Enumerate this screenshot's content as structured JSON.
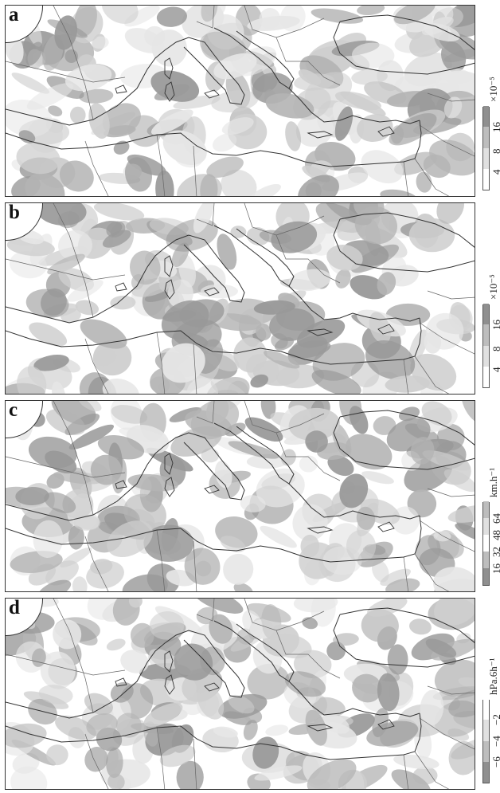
{
  "panels": [
    {
      "id": "a",
      "label": "a",
      "shading": "a",
      "colorbar": {
        "unit": "×10⁻⁵",
        "levels": [
          "4",
          "8",
          "16"
        ],
        "colors": [
          "#ffffff",
          "#e0e0e0",
          "#bdbdbd",
          "#8f8f8f"
        ]
      }
    },
    {
      "id": "b",
      "label": "b",
      "shading": "b",
      "colorbar": {
        "unit": "×10⁻⁵",
        "levels": [
          "4",
          "8",
          "16"
        ],
        "colors": [
          "#ffffff",
          "#e0e0e0",
          "#bdbdbd",
          "#8f8f8f"
        ]
      }
    },
    {
      "id": "c",
      "label": "c",
      "shading": "c",
      "colorbar": {
        "unit": "km.h⁻¹",
        "levels": [
          "16",
          "32",
          "48",
          "64"
        ],
        "colors": [
          "#8f8f8f",
          "#bdbdbd",
          "#ffffff",
          "#e0e0e0",
          "#bdbdbd"
        ]
      }
    },
    {
      "id": "d",
      "label": "d",
      "shading": "d",
      "colorbar": {
        "unit": "hPa.6h⁻¹",
        "levels": [
          "−6",
          "−4",
          "−2"
        ],
        "colors": [
          "#8f8f8f",
          "#bdbdbd",
          "#e0e0e0",
          "#ffffff"
        ]
      }
    }
  ]
}
